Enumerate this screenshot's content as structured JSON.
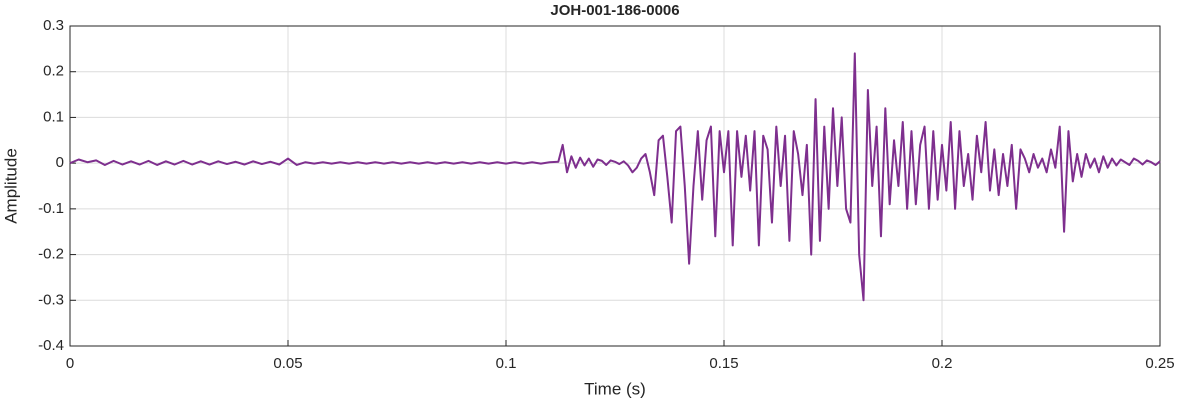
{
  "chart_data": {
    "type": "line",
    "title": "JOH-001-186-0006",
    "xlabel": "Time (s)",
    "ylabel": "Amplitude",
    "color": "#7e2f8e",
    "grid": true,
    "xlim": [
      0,
      0.25
    ],
    "xticks": [
      0,
      0.05,
      0.1,
      0.15,
      0.2,
      0.25
    ],
    "ylim": [
      -0.4,
      0.3
    ],
    "yticks": [
      0.3,
      0.2,
      0.1,
      0,
      -0.1,
      -0.2,
      -0.3,
      -0.4
    ],
    "x": [
      0,
      0.002,
      0.004,
      0.006,
      0.008,
      0.01,
      0.012,
      0.014,
      0.016,
      0.018,
      0.02,
      0.022,
      0.024,
      0.026,
      0.028,
      0.03,
      0.032,
      0.034,
      0.036,
      0.038,
      0.04,
      0.042,
      0.044,
      0.046,
      0.048,
      0.05,
      0.052,
      0.054,
      0.056,
      0.058,
      0.06,
      0.062,
      0.064,
      0.066,
      0.068,
      0.07,
      0.072,
      0.074,
      0.076,
      0.078,
      0.08,
      0.082,
      0.084,
      0.086,
      0.088,
      0.09,
      0.092,
      0.094,
      0.096,
      0.098,
      0.1,
      0.102,
      0.104,
      0.106,
      0.108,
      0.11,
      0.112,
      0.113,
      0.114,
      0.115,
      0.116,
      0.117,
      0.118,
      0.119,
      0.12,
      0.121,
      0.122,
      0.123,
      0.124,
      0.125,
      0.126,
      0.127,
      0.128,
      0.129,
      0.13,
      0.131,
      0.132,
      0.133,
      0.134,
      0.135,
      0.136,
      0.137,
      0.138,
      0.139,
      0.14,
      0.141,
      0.142,
      0.143,
      0.144,
      0.145,
      0.146,
      0.147,
      0.148,
      0.149,
      0.15,
      0.151,
      0.152,
      0.153,
      0.154,
      0.155,
      0.156,
      0.157,
      0.158,
      0.159,
      0.16,
      0.161,
      0.162,
      0.163,
      0.164,
      0.165,
      0.166,
      0.167,
      0.168,
      0.169,
      0.17,
      0.171,
      0.172,
      0.173,
      0.174,
      0.175,
      0.176,
      0.177,
      0.178,
      0.179,
      0.18,
      0.181,
      0.182,
      0.183,
      0.184,
      0.185,
      0.186,
      0.187,
      0.188,
      0.189,
      0.19,
      0.191,
      0.192,
      0.193,
      0.194,
      0.195,
      0.196,
      0.197,
      0.198,
      0.199,
      0.2,
      0.201,
      0.202,
      0.203,
      0.204,
      0.205,
      0.206,
      0.207,
      0.208,
      0.209,
      0.21,
      0.211,
      0.212,
      0.213,
      0.214,
      0.215,
      0.216,
      0.217,
      0.218,
      0.219,
      0.22,
      0.221,
      0.222,
      0.223,
      0.224,
      0.225,
      0.226,
      0.227,
      0.228,
      0.229,
      0.23,
      0.231,
      0.232,
      0.233,
      0.234,
      0.235,
      0.236,
      0.237,
      0.238,
      0.239,
      0.24,
      0.241,
      0.242,
      0.243,
      0.244,
      0.245,
      0.246,
      0.247,
      0.248,
      0.249,
      0.25
    ],
    "values": [
      0,
      0.008,
      0.002,
      0.006,
      -0.004,
      0.005,
      -0.003,
      0.004,
      -0.003,
      0.005,
      -0.004,
      0.004,
      -0.003,
      0.005,
      -0.003,
      0.004,
      -0.003,
      0.004,
      -0.002,
      0.003,
      -0.003,
      0.004,
      -0.002,
      0.003,
      -0.003,
      0.01,
      -0.004,
      0.002,
      -0.001,
      0.002,
      -0.001,
      0.002,
      -0.001,
      0.002,
      -0.001,
      0.002,
      -0.001,
      0.002,
      -0.001,
      0.002,
      -0.001,
      0.002,
      -0.001,
      0.002,
      -0.001,
      0.002,
      -0.001,
      0.002,
      -0.001,
      0.002,
      -0.001,
      0.002,
      -0.001,
      0.002,
      -0.001,
      0.002,
      0.003,
      0.04,
      -0.02,
      0.015,
      -0.01,
      0.012,
      -0.005,
      0.01,
      -0.008,
      0.008,
      0.005,
      -0.004,
      0.006,
      0.003,
      -0.002,
      0.004,
      -0.005,
      -0.02,
      -0.01,
      0.01,
      0.02,
      -0.02,
      -0.07,
      0.05,
      0.06,
      -0.03,
      -0.13,
      0.07,
      0.08,
      -0.05,
      -0.22,
      -0.05,
      0.07,
      -0.08,
      0.05,
      0.08,
      -0.16,
      0.07,
      -0.02,
      0.07,
      -0.18,
      0.07,
      -0.03,
      0.06,
      -0.06,
      0.07,
      -0.18,
      0.06,
      0.03,
      -0.13,
      0.08,
      -0.05,
      0.06,
      -0.17,
      0.07,
      0.02,
      -0.07,
      0.04,
      -0.2,
      0.14,
      -0.17,
      0.08,
      -0.1,
      0.12,
      -0.05,
      0.1,
      -0.1,
      -0.13,
      0.24,
      -0.2,
      -0.3,
      0.16,
      -0.05,
      0.08,
      -0.16,
      0.12,
      -0.09,
      0.05,
      -0.05,
      0.09,
      -0.1,
      0.07,
      -0.09,
      0.04,
      0.08,
      -0.1,
      0.07,
      -0.08,
      0.04,
      -0.06,
      0.09,
      -0.1,
      0.07,
      -0.05,
      0.02,
      -0.08,
      0.06,
      -0.02,
      0.09,
      -0.06,
      0.03,
      -0.07,
      0.02,
      -0.05,
      0.04,
      -0.1,
      0.03,
      0.01,
      -0.02,
      0.02,
      -0.01,
      0.01,
      -0.02,
      0.03,
      -0.01,
      0.08,
      -0.15,
      0.07,
      -0.04,
      0.02,
      -0.03,
      0.02,
      -0.01,
      0.01,
      -0.02,
      0.015,
      -0.01,
      0.01,
      -0.005,
      0.008,
      0.002,
      -0.004,
      0.01,
      0.005,
      -0.003,
      0.006,
      0.002,
      -0.004,
      0.004
    ]
  }
}
